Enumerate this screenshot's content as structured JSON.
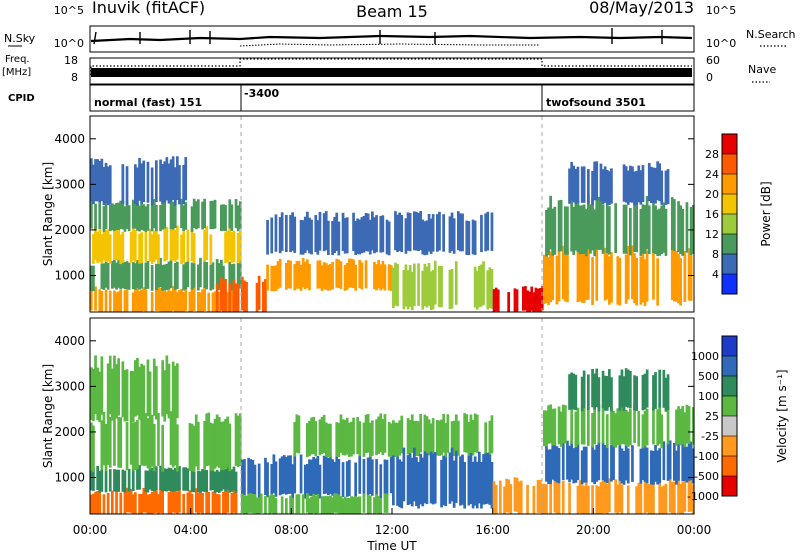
{
  "header": {
    "station": "Inuvik (fitACF)",
    "beam": "Beam 15",
    "date": "08/May/2013"
  },
  "strip_panels": {
    "nsky_label": "N.Sky",
    "nsearch_label": "N.Search",
    "freq_label_1": "Freq.",
    "freq_label_2": "[MHz]",
    "nave_label": "Nave",
    "cpid_label": "CPID",
    "left_count_ticks": [
      "10^5",
      "10^0"
    ],
    "right_count_ticks": [
      "10^5",
      "10^0"
    ],
    "freq_ticks": [
      "18",
      "8"
    ],
    "nave_ticks": [
      "60",
      "0"
    ],
    "cpid_segments": [
      {
        "label": "normal (fast) 151",
        "start_hour": 0
      },
      {
        "label": "-3400",
        "start_hour": 6
      },
      {
        "label": "twofsound 3501",
        "start_hour": 18
      }
    ]
  },
  "chart_data": [
    {
      "type": "heatmap",
      "panel": "power",
      "ylabel": "Slant Range [km]",
      "xlabel": "",
      "xlim_hours": [
        0,
        24
      ],
      "ylim": [
        200,
        4500
      ],
      "y_ticks": [
        1000,
        2000,
        3000,
        4000
      ],
      "colorbar": {
        "label": "Power [dB]",
        "ticks": [
          "28",
          "24",
          "20",
          "16",
          "12",
          "8",
          "4"
        ],
        "colors": [
          "#e60000",
          "#ff5a00",
          "#ff9a00",
          "#f5c400",
          "#9ccb3c",
          "#4a9a5c",
          "#3c6ab4",
          "#1030ff"
        ]
      },
      "regions": [
        {
          "t0": 0.0,
          "t1": 6.0,
          "r0": 200,
          "r1": 700,
          "level": 24
        },
        {
          "t0": 0.0,
          "t1": 6.0,
          "r0": 700,
          "r1": 1300,
          "level": 12
        },
        {
          "t0": 0.0,
          "t1": 6.0,
          "r0": 1300,
          "r1": 2000,
          "level": 20
        },
        {
          "t0": 0.0,
          "t1": 6.0,
          "r0": 2000,
          "r1": 2600,
          "level": 12
        },
        {
          "t0": 0.0,
          "t1": 4.0,
          "r0": 2600,
          "r1": 3500,
          "level": 6
        },
        {
          "t0": 5.0,
          "t1": 7.0,
          "r0": 200,
          "r1": 900,
          "level": 28
        },
        {
          "t0": 7.0,
          "t1": 12.0,
          "r0": 700,
          "r1": 1300,
          "level": 24
        },
        {
          "t0": 7.0,
          "t1": 16.0,
          "r0": 1500,
          "r1": 2300,
          "level": 8
        },
        {
          "t0": 12.0,
          "t1": 16.0,
          "r0": 300,
          "r1": 1200,
          "level": 16
        },
        {
          "t0": 16.0,
          "t1": 18.0,
          "r0": 200,
          "r1": 700,
          "level": 30
        },
        {
          "t0": 18.0,
          "t1": 24.0,
          "r0": 400,
          "r1": 1500,
          "level": 24
        },
        {
          "t0": 18.0,
          "t1": 24.0,
          "r0": 1500,
          "r1": 2600,
          "level": 12
        },
        {
          "t0": 19.0,
          "t1": 23.0,
          "r0": 2600,
          "r1": 3400,
          "level": 8
        }
      ]
    },
    {
      "type": "heatmap",
      "panel": "velocity",
      "ylabel": "Slant Range [km]",
      "xlabel": "Time UT",
      "xlim_hours": [
        0,
        24
      ],
      "ylim": [
        200,
        4500
      ],
      "y_ticks": [
        1000,
        2000,
        3000,
        4000
      ],
      "x_tick_labels": [
        "00:00",
        "04:00",
        "08:00",
        "12:00",
        "16:00",
        "20:00",
        "00:00"
      ],
      "colorbar": {
        "label": "Velocity [m s⁻¹]",
        "ticks": [
          "1000",
          "500",
          "100",
          "25",
          "-25",
          "-100",
          "-500",
          "-1000"
        ],
        "colors": [
          "#1c3cc8",
          "#2f6ab8",
          "#2f8a5c",
          "#5ab843",
          "#c8c8c8",
          "#ff9a1e",
          "#ff6a00",
          "#e60000"
        ]
      },
      "regions": [
        {
          "t0": 0.0,
          "t1": 6.0,
          "r0": 200,
          "r1": 700,
          "level": -500
        },
        {
          "t0": 0.0,
          "t1": 6.0,
          "r0": 700,
          "r1": 1200,
          "level": 100
        },
        {
          "t0": 0.0,
          "t1": 6.0,
          "r0": 1200,
          "r1": 2300,
          "level": 0
        },
        {
          "t0": 0.0,
          "t1": 3.5,
          "r0": 2300,
          "r1": 3500,
          "level": 0
        },
        {
          "t0": 6.0,
          "t1": 12.0,
          "r0": 600,
          "r1": 1400,
          "level": 300
        },
        {
          "t0": 6.0,
          "t1": 12.0,
          "r0": 200,
          "r1": 600,
          "level": 0
        },
        {
          "t0": 8.0,
          "t1": 16.0,
          "r0": 1500,
          "r1": 2300,
          "level": 0
        },
        {
          "t0": 12.0,
          "t1": 16.0,
          "r0": 400,
          "r1": 1500,
          "level": 700
        },
        {
          "t0": 16.0,
          "t1": 18.0,
          "r0": 200,
          "r1": 900,
          "level": -300
        },
        {
          "t0": 18.0,
          "t1": 24.0,
          "r0": 200,
          "r1": 900,
          "level": -300
        },
        {
          "t0": 18.0,
          "t1": 24.0,
          "r0": 900,
          "r1": 1700,
          "level": 300
        },
        {
          "t0": 18.0,
          "t1": 24.0,
          "r0": 1700,
          "r1": 2500,
          "level": 0
        },
        {
          "t0": 19.0,
          "t1": 23.0,
          "r0": 2500,
          "r1": 3300,
          "level": 100
        }
      ]
    }
  ]
}
